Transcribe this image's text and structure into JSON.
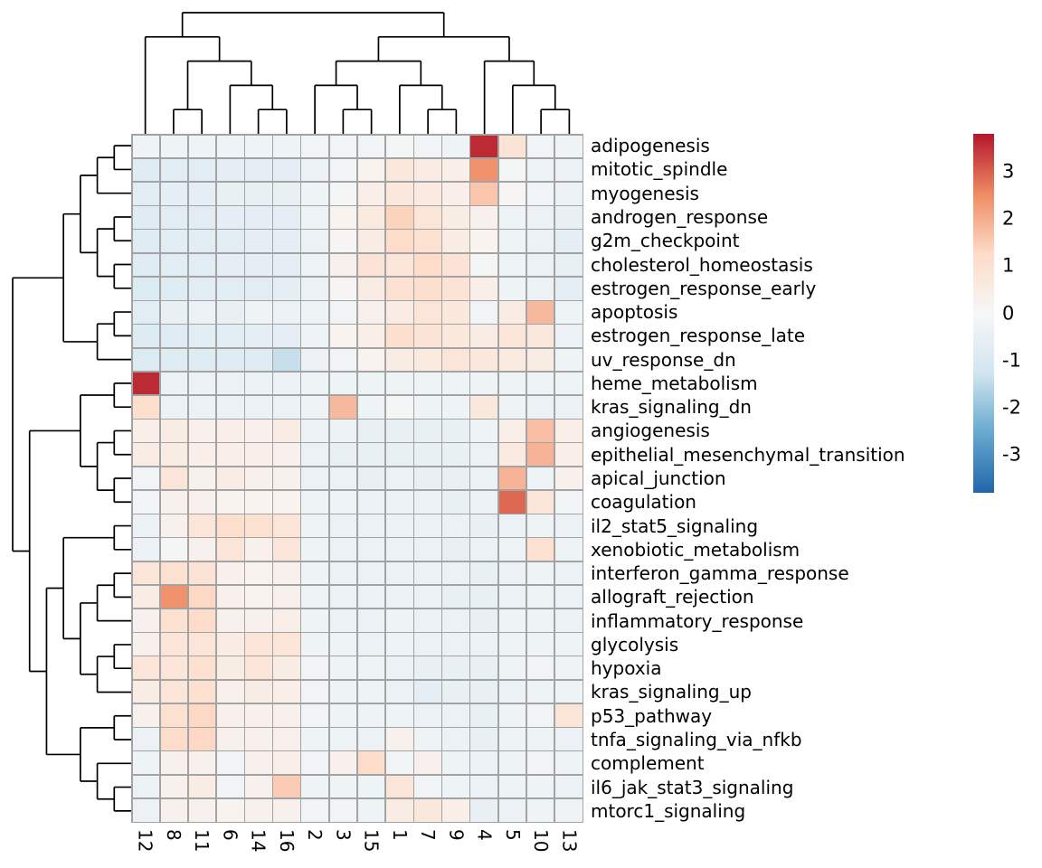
{
  "chart_data": {
    "type": "heatmap",
    "title": "",
    "columns": [
      "12",
      "8",
      "11",
      "6",
      "14",
      "16",
      "2",
      "3",
      "15",
      "1",
      "7",
      "9",
      "4",
      "5",
      "10",
      "13"
    ],
    "rows": [
      "adipogenesis",
      "mitotic_spindle",
      "myogenesis",
      "androgen_response",
      "g2m_checkpoint",
      "cholesterol_homeostasis",
      "estrogen_response_early",
      "apoptosis",
      "estrogen_response_late",
      "uv_response_dn",
      "heme_metabolism",
      "kras_signaling_dn",
      "angiogenesis",
      "epithelial_mesenchymal_transition",
      "apical_junction",
      "coagulation",
      "il2_stat5_signaling",
      "xenobiotic_metabolism",
      "interferon_gamma_response",
      "allograft_rejection",
      "inflammatory_response",
      "glycolysis",
      "hypoxia",
      "kras_signaling_up",
      "p53_pathway",
      "tnfa_signaling_via_nfkb",
      "complement",
      "il6_jak_stat3_signaling",
      "mtorc1_signaling"
    ],
    "values": [
      [
        -0.3,
        -0.3,
        -0.3,
        -0.3,
        -0.3,
        -0.3,
        -0.2,
        -0.2,
        -0.2,
        -0.1,
        -0.2,
        -0.3,
        3.6,
        0.9,
        -0.2,
        -0.3
      ],
      [
        -0.8,
        -0.7,
        -0.7,
        -0.6,
        -0.6,
        -0.6,
        -0.4,
        -0.2,
        0.2,
        0.7,
        0.5,
        0.4,
        2.4,
        -0.1,
        -0.3,
        -0.4
      ],
      [
        -0.7,
        -0.6,
        -0.6,
        -0.5,
        -0.5,
        -0.5,
        -0.3,
        -0.1,
        0.4,
        0.7,
        0.6,
        0.4,
        1.6,
        0.1,
        -0.2,
        -0.4
      ],
      [
        -0.8,
        -0.7,
        -0.7,
        -0.6,
        -0.6,
        -0.6,
        -0.3,
        0.2,
        0.6,
        1.4,
        0.8,
        0.5,
        0.3,
        -0.3,
        -0.4,
        -0.5
      ],
      [
        -0.8,
        -0.7,
        -0.7,
        -0.7,
        -0.6,
        -0.6,
        -0.4,
        0.1,
        0.5,
        1.2,
        1.0,
        0.5,
        0.2,
        -0.3,
        -0.4,
        -0.6
      ],
      [
        -0.8,
        -0.7,
        -0.7,
        -0.6,
        -0.6,
        -0.6,
        -0.3,
        0.3,
        0.9,
        0.8,
        1.2,
        0.9,
        -0.1,
        -0.3,
        -0.4,
        -0.5
      ],
      [
        -0.9,
        -0.8,
        -0.7,
        -0.7,
        -0.7,
        -0.6,
        -0.4,
        0.1,
        0.5,
        1.0,
        1.1,
        0.9,
        0.4,
        -0.3,
        -0.4,
        -0.6
      ],
      [
        -0.7,
        -0.5,
        -0.4,
        -0.5,
        -0.3,
        -0.4,
        -0.3,
        -0.2,
        0.3,
        0.5,
        0.8,
        0.7,
        -0.2,
        0.5,
        1.8,
        -0.3
      ],
      [
        -0.9,
        -0.8,
        -0.7,
        -0.7,
        -0.6,
        -0.6,
        -0.3,
        0.2,
        0.4,
        1.1,
        0.9,
        0.7,
        0.5,
        0.8,
        0.7,
        -0.4
      ],
      [
        -0.9,
        -0.8,
        -0.8,
        -0.8,
        -0.8,
        -1.4,
        -0.4,
        -0.2,
        0.2,
        0.5,
        0.6,
        0.8,
        0.7,
        0.6,
        0.5,
        -0.3
      ],
      [
        3.6,
        -0.4,
        -0.4,
        -0.4,
        -0.4,
        -0.4,
        -0.3,
        -0.3,
        -0.3,
        -0.3,
        -0.3,
        -0.3,
        -0.3,
        -0.3,
        -0.3,
        -0.3
      ],
      [
        1.1,
        -0.4,
        -0.4,
        -0.4,
        -0.4,
        -0.4,
        -0.3,
        1.8,
        -0.3,
        -0.1,
        -0.3,
        -0.3,
        0.7,
        -0.3,
        -0.4,
        -0.4
      ],
      [
        0.4,
        0.5,
        0.3,
        0.4,
        0.3,
        0.5,
        -0.4,
        -0.4,
        -0.5,
        -0.5,
        -0.5,
        -0.5,
        -0.3,
        0.4,
        1.7,
        0.4
      ],
      [
        0.5,
        0.5,
        0.4,
        0.4,
        0.4,
        0.3,
        -0.4,
        -0.5,
        -0.5,
        -0.5,
        -0.5,
        -0.5,
        -0.4,
        0.6,
        1.9,
        0.4
      ],
      [
        -0.2,
        0.8,
        0.3,
        0.5,
        0.3,
        0.3,
        -0.4,
        -0.4,
        -0.5,
        -0.4,
        -0.5,
        -0.5,
        -0.4,
        1.9,
        -0.3,
        0.3
      ],
      [
        -0.2,
        0.3,
        0.3,
        0.2,
        0.2,
        0.2,
        -0.3,
        -0.3,
        -0.4,
        -0.4,
        -0.4,
        -0.5,
        -0.4,
        2.9,
        0.8,
        -0.2
      ],
      [
        -0.4,
        0.3,
        0.8,
        1.1,
        1.0,
        0.8,
        -0.3,
        -0.4,
        -0.4,
        -0.4,
        -0.4,
        -0.4,
        -0.5,
        -0.4,
        -0.3,
        -0.4
      ],
      [
        -0.4,
        -0.1,
        0.3,
        0.8,
        0.3,
        0.8,
        -0.3,
        -0.4,
        -0.4,
        -0.4,
        -0.4,
        -0.5,
        -0.4,
        -0.3,
        1.0,
        -0.3
      ],
      [
        0.8,
        1.0,
        0.9,
        0.3,
        0.2,
        0.3,
        -0.3,
        -0.4,
        -0.4,
        -0.4,
        -0.4,
        -0.4,
        -0.5,
        -0.4,
        -0.3,
        -0.4
      ],
      [
        0.5,
        2.4,
        1.3,
        0.3,
        0.2,
        0.3,
        -0.3,
        -0.4,
        -0.4,
        -0.4,
        -0.4,
        -0.5,
        -0.5,
        -0.4,
        -0.3,
        -0.4
      ],
      [
        0.3,
        1.0,
        1.2,
        0.3,
        0.3,
        0.4,
        -0.3,
        -0.4,
        -0.4,
        -0.3,
        -0.4,
        -0.4,
        -0.5,
        -0.3,
        -0.3,
        -0.4
      ],
      [
        0.3,
        0.8,
        0.8,
        0.5,
        0.8,
        0.8,
        -0.3,
        -0.3,
        -0.4,
        -0.3,
        -0.4,
        -0.4,
        -0.4,
        -0.3,
        -0.3,
        -0.3
      ],
      [
        0.8,
        0.8,
        1.0,
        0.5,
        0.8,
        0.5,
        -0.2,
        -0.3,
        -0.3,
        -0.4,
        -0.5,
        -0.5,
        -0.5,
        -0.3,
        -0.2,
        -0.3
      ],
      [
        0.5,
        0.8,
        1.0,
        0.3,
        0.5,
        0.4,
        -0.2,
        -0.3,
        -0.3,
        -0.4,
        -0.6,
        -0.5,
        -0.5,
        -0.4,
        -0.3,
        -0.3
      ],
      [
        0.3,
        1.0,
        1.3,
        0.3,
        0.3,
        0.3,
        -0.2,
        -0.3,
        -0.3,
        -0.3,
        -0.4,
        -0.4,
        -0.5,
        -0.3,
        -0.2,
        0.8
      ],
      [
        -0.4,
        1.2,
        1.3,
        0.3,
        0.3,
        0.3,
        -0.3,
        -0.3,
        -0.4,
        0.3,
        -0.3,
        -0.4,
        -0.5,
        -0.3,
        -0.3,
        -0.4
      ],
      [
        -0.3,
        0.3,
        0.3,
        -0.2,
        0.3,
        0.4,
        -0.2,
        0.3,
        1.2,
        -0.2,
        0.3,
        -0.3,
        -0.4,
        -0.3,
        -0.2,
        -0.3
      ],
      [
        -0.4,
        0.3,
        0.5,
        -0.2,
        0.3,
        1.5,
        -0.3,
        -0.3,
        -0.3,
        0.8,
        -0.2,
        -0.3,
        -0.4,
        -0.3,
        -0.3,
        -0.4
      ],
      [
        -0.4,
        0.3,
        0.3,
        0.2,
        0.3,
        0.3,
        -0.2,
        -0.2,
        -0.3,
        0.5,
        0.7,
        0.4,
        -0.5,
        -0.4,
        -0.3,
        -0.3
      ]
    ],
    "colorscale": {
      "name": "RdBu-reversed (blue-white-red)",
      "domain": [
        -3.8,
        3.8
      ],
      "stops": [
        {
          "value": -3.8,
          "color": "#2166ac"
        },
        {
          "value": -2.53,
          "color": "#67a9cf"
        },
        {
          "value": -1.27,
          "color": "#d1e5f0"
        },
        {
          "value": 0,
          "color": "#f7f7f7"
        },
        {
          "value": 1.27,
          "color": "#fddbc7"
        },
        {
          "value": 2.53,
          "color": "#ef8a62"
        },
        {
          "value": 3.8,
          "color": "#b2182b"
        }
      ],
      "legend_ticks": [
        "3",
        "2",
        "1",
        "0",
        "-1",
        "-2",
        "-3"
      ],
      "legend_tick_values": [
        3,
        2,
        1,
        0,
        -1,
        -2,
        -3
      ]
    },
    "col_dendrogram": [
      [
        0,
        [
          [
            1,
            2
          ],
          [
            3,
            [
              4,
              5
            ]
          ]
        ]
      ],
      [
        [
          [
            6,
            [
              7,
              8
            ]
          ],
          [
            9,
            [
              10,
              11
            ]
          ]
        ],
        [
          12,
          [
            13,
            [
              14,
              15
            ]
          ]
        ]
      ]
    ],
    "row_dendrogram": [
      [
        [
          [
            [
              0,
              1
            ],
            2
          ],
          [
            [
              3,
              4
            ],
            [
              5,
              6
            ]
          ]
        ],
        [
          [
            7,
            8
          ],
          9
        ]
      ],
      [
        [
          [
            10,
            11
          ],
          [
            [
              12,
              13
            ],
            [
              14,
              15
            ]
          ]
        ],
        [
          [
            [
              16,
              17
            ],
            [
              [
                [
                  18,
                  19
                ],
                20
              ],
              [
                [
                  21,
                  22
                ],
                23
              ]
            ]
          ],
          [
            [
              24,
              25
            ],
            [
              26,
              [
                27,
                28
              ]
            ]
          ]
        ]
      ]
    ],
    "layout_hints": {
      "legend_position": "right",
      "row_labels_position": "right",
      "col_labels_position": "bottom",
      "dendrograms": [
        "top",
        "left"
      ],
      "grid": true
    }
  }
}
